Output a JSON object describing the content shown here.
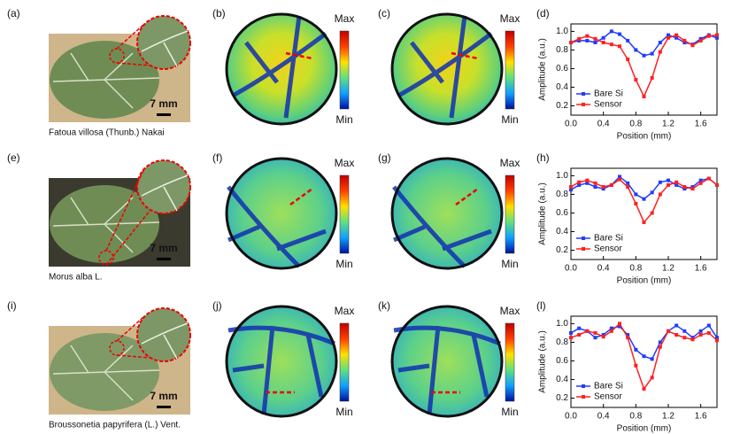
{
  "chart_data": [
    {
      "type": "line",
      "xlabel": "Position (mm)",
      "ylabel": "Amplitude (a.u.)",
      "x": [
        0,
        0.1,
        0.2,
        0.3,
        0.4,
        0.5,
        0.6,
        0.7,
        0.8,
        0.9,
        1.0,
        1.1,
        1.2,
        1.3,
        1.4,
        1.5,
        1.6,
        1.7,
        1.8
      ],
      "xlim": [
        0,
        1.8
      ],
      "ylim": [
        0.1,
        1.08
      ],
      "xticks": [
        {
          "value": 0,
          "label": "0.0"
        },
        0.4,
        0.8,
        1.2,
        1.6
      ],
      "yticks": [
        0.2,
        0.4,
        0.6,
        0.8,
        {
          "value": 1,
          "label": "1.0"
        }
      ],
      "legend": "lower left",
      "series": [
        {
          "name": "Bare Si",
          "color": "#1f3cff",
          "values": [
            0.88,
            0.9,
            0.9,
            0.88,
            0.93,
            1.0,
            0.97,
            0.9,
            0.8,
            0.74,
            0.76,
            0.88,
            0.96,
            0.93,
            0.88,
            0.86,
            0.92,
            0.96,
            0.93
          ]
        },
        {
          "name": "Sensor",
          "color": "#ff2020",
          "values": [
            0.88,
            0.92,
            0.95,
            0.92,
            0.88,
            0.86,
            0.84,
            0.7,
            0.48,
            0.3,
            0.5,
            0.78,
            0.93,
            0.96,
            0.9,
            0.85,
            0.9,
            0.95,
            0.96
          ]
        }
      ]
    },
    {
      "type": "line",
      "xlabel": "Position (mm)",
      "ylabel": "Amplitude (a.u.)",
      "x": [
        0,
        0.1,
        0.2,
        0.3,
        0.4,
        0.5,
        0.6,
        0.7,
        0.8,
        0.9,
        1.0,
        1.1,
        1.2,
        1.3,
        1.4,
        1.5,
        1.6,
        1.7,
        1.8
      ],
      "xlim": [
        0,
        1.8
      ],
      "ylim": [
        0.1,
        1.08
      ],
      "xticks": [
        {
          "value": 0,
          "label": "0.0"
        },
        0.4,
        0.8,
        1.2,
        1.6
      ],
      "yticks": [
        0.2,
        0.4,
        0.6,
        0.8,
        {
          "value": 1,
          "label": "1.0"
        }
      ],
      "legend": "lower left",
      "series": [
        {
          "name": "Bare Si",
          "color": "#1f3cff",
          "values": [
            0.85,
            0.9,
            0.92,
            0.88,
            0.86,
            0.9,
            0.99,
            0.92,
            0.8,
            0.75,
            0.82,
            0.93,
            0.95,
            0.9,
            0.86,
            0.88,
            0.95,
            0.97,
            0.9
          ]
        },
        {
          "name": "Sensor",
          "color": "#ff2020",
          "values": [
            0.88,
            0.93,
            0.95,
            0.92,
            0.88,
            0.9,
            0.96,
            0.88,
            0.7,
            0.5,
            0.6,
            0.8,
            0.9,
            0.93,
            0.88,
            0.86,
            0.92,
            0.97,
            0.9
          ]
        }
      ]
    },
    {
      "type": "line",
      "xlabel": "Position (mm)",
      "ylabel": "Amplitude (a.u.)",
      "x": [
        0,
        0.1,
        0.2,
        0.3,
        0.4,
        0.5,
        0.6,
        0.7,
        0.8,
        0.9,
        1.0,
        1.1,
        1.2,
        1.3,
        1.4,
        1.5,
        1.6,
        1.7,
        1.8
      ],
      "xlim": [
        0,
        1.8
      ],
      "ylim": [
        0.1,
        1.08
      ],
      "xticks": [
        {
          "value": 0,
          "label": "0.0"
        },
        0.4,
        0.8,
        1.2,
        1.6
      ],
      "yticks": [
        0.2,
        0.4,
        0.6,
        0.8,
        {
          "value": 1,
          "label": "1.0"
        }
      ],
      "legend": "lower left",
      "series": [
        {
          "name": "Bare Si",
          "color": "#1f3cff",
          "values": [
            0.9,
            0.95,
            0.92,
            0.85,
            0.88,
            0.95,
            0.97,
            0.88,
            0.72,
            0.65,
            0.62,
            0.8,
            0.92,
            0.98,
            0.92,
            0.85,
            0.92,
            0.98,
            0.85
          ]
        },
        {
          "name": "Sensor",
          "color": "#ff2020",
          "values": [
            0.85,
            0.88,
            0.92,
            0.9,
            0.86,
            0.92,
            1.0,
            0.85,
            0.55,
            0.3,
            0.42,
            0.75,
            0.92,
            0.88,
            0.85,
            0.83,
            0.88,
            0.9,
            0.82
          ]
        }
      ]
    }
  ],
  "rows": [
    {
      "photo_label": "(a)",
      "caption": "Fatoua villosa (Thunb.) Nakai",
      "scale_bar": "7 mm",
      "map_labels": [
        "(b)",
        "(c)"
      ],
      "chart_label": "(d)"
    },
    {
      "photo_label": "(e)",
      "caption": "Morus alba L.",
      "scale_bar": "7 mm",
      "map_labels": [
        "(f)",
        "(g)"
      ],
      "chart_label": "(h)"
    },
    {
      "photo_label": "(i)",
      "caption": "Broussonetia papyrifera (L.) Vent.",
      "scale_bar": "7 mm",
      "map_labels": [
        "(j)",
        "(k)"
      ],
      "chart_label": "(l)"
    }
  ],
  "colorbar": {
    "max": "Max",
    "min": "Min"
  }
}
